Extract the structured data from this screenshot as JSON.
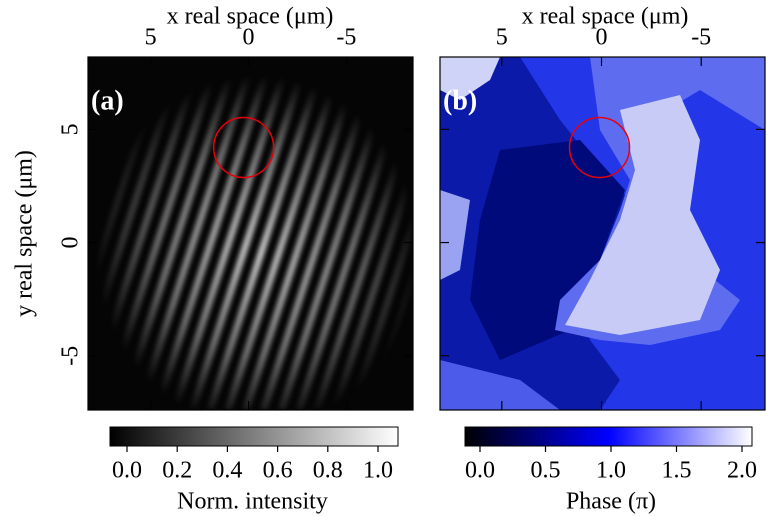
{
  "chart_data": [
    {
      "type": "image",
      "panel_label": "(a)",
      "xlabel": "x real space (μm)",
      "ylabel": "y real space (μm)",
      "xlim": [
        8.2,
        -8.4
      ],
      "xticks": [
        5,
        0,
        -5
      ],
      "ylim": [
        -7.4,
        8.2
      ],
      "yticks": [
        -5,
        0,
        5
      ],
      "show_ytick_labels": true,
      "marker": {
        "x": 0.25,
        "y": 4.2,
        "color": "#e8000b"
      },
      "colorbar": {
        "label": "Norm. intensity",
        "lim": [
          0,
          1
        ],
        "colors": [
          "#000000",
          "#ffffff"
        ],
        "ticks": [
          {
            "value": 0,
            "label": "0.0"
          },
          {
            "value": 0.2,
            "label": "0.2"
          },
          {
            "value": 0.4,
            "label": "0.4"
          },
          {
            "value": 0.6,
            "label": "0.6"
          },
          {
            "value": 0.8,
            "label": "0.8"
          },
          {
            "value": 1,
            "label": "1.0"
          }
        ]
      }
    },
    {
      "type": "image",
      "panel_label": "(b)",
      "xlabel": "x real space (μm)",
      "xlim": [
        8.1,
        -8.2
      ],
      "xticks": [
        5,
        0,
        -5
      ],
      "ylim": [
        -7.4,
        8.2
      ],
      "yticks": [
        -5,
        0,
        5
      ],
      "show_ytick_labels": false,
      "marker": {
        "x": 0.1,
        "y": 4.2,
        "color": "#e8000b"
      },
      "colorbar": {
        "label": "Phase (π)",
        "lim": [
          0,
          2
        ],
        "colors": [
          "#000000",
          "#0000ff",
          "#ffffff"
        ],
        "ticks": [
          {
            "value": 0,
            "label": "0.0"
          },
          {
            "value": 0.5,
            "label": "0.5"
          },
          {
            "value": 1,
            "label": "1.0"
          },
          {
            "value": 1.5,
            "label": "1.5"
          },
          {
            "value": 2,
            "label": "2.0"
          }
        ]
      }
    }
  ]
}
